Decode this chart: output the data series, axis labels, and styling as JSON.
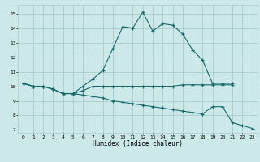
{
  "xlabel": "Humidex (Indice chaleur)",
  "bg_color": "#cce8e8",
  "grid_color": "#aacccc",
  "line_color": "#1a6b6b",
  "xlim": [
    -0.5,
    23.5
  ],
  "ylim": [
    6.8,
    15.6
  ],
  "xticks": [
    0,
    1,
    2,
    3,
    4,
    5,
    6,
    7,
    8,
    9,
    10,
    11,
    12,
    13,
    14,
    15,
    16,
    17,
    18,
    19,
    20,
    21,
    22,
    23
  ],
  "yticks": [
    7,
    8,
    9,
    10,
    11,
    12,
    13,
    14,
    15
  ],
  "line1_x": [
    0,
    1,
    2,
    3,
    4,
    5,
    6,
    7,
    8,
    9,
    10,
    11,
    12,
    13,
    14,
    15,
    16,
    17,
    18,
    19,
    20,
    21
  ],
  "line1_y": [
    10.2,
    10.0,
    10.0,
    9.8,
    9.5,
    9.5,
    10.0,
    10.5,
    11.1,
    12.6,
    14.1,
    14.0,
    15.1,
    13.8,
    14.3,
    14.2,
    13.6,
    12.5,
    11.8,
    10.2,
    10.2,
    10.2
  ],
  "line2_x": [
    0,
    1,
    2,
    3,
    4,
    5,
    6,
    7,
    8,
    9,
    10,
    11,
    12,
    13,
    14,
    15,
    16,
    17,
    18,
    19,
    20,
    21
  ],
  "line2_y": [
    10.2,
    10.0,
    10.0,
    9.8,
    9.5,
    9.5,
    9.7,
    10.0,
    10.0,
    10.0,
    10.0,
    10.0,
    10.0,
    10.0,
    10.0,
    10.0,
    10.1,
    10.1,
    10.1,
    10.1,
    10.1,
    10.1
  ],
  "line3_x": [
    0,
    1,
    2,
    3,
    4,
    5,
    6,
    7,
    8,
    9,
    10,
    11,
    12,
    13,
    14,
    15,
    16,
    17,
    18,
    19,
    20,
    21,
    22,
    23
  ],
  "line3_y": [
    10.2,
    10.0,
    10.0,
    9.8,
    9.5,
    9.5,
    9.4,
    9.3,
    9.2,
    9.0,
    8.9,
    8.8,
    8.7,
    8.6,
    8.5,
    8.4,
    8.3,
    8.2,
    8.1,
    8.6,
    8.6,
    7.5,
    7.3,
    7.1
  ]
}
